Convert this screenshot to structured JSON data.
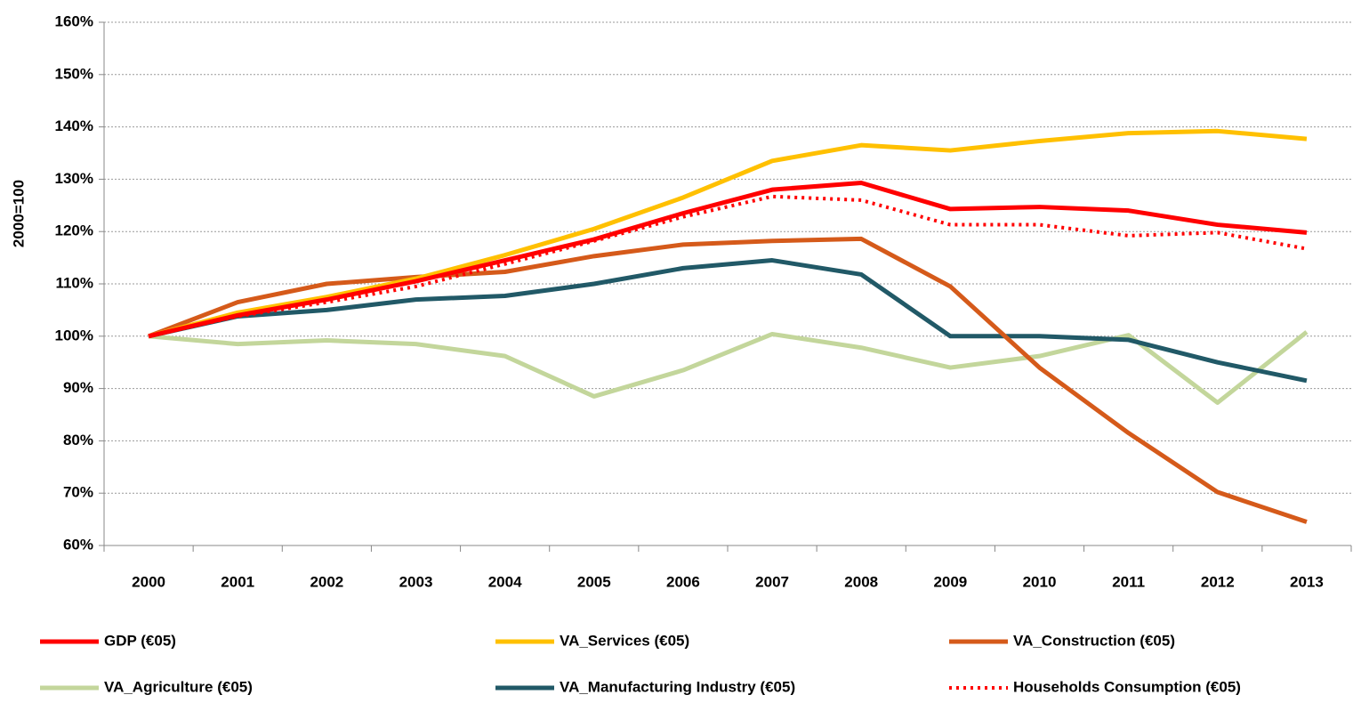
{
  "chart_data": {
    "type": "line",
    "y_label": "2000=100",
    "categories": [
      "2000",
      "2001",
      "2002",
      "2003",
      "2004",
      "2005",
      "2006",
      "2007",
      "2008",
      "2009",
      "2010",
      "2011",
      "2012",
      "2013"
    ],
    "ylim": [
      60,
      160
    ],
    "yticks": [
      {
        "value": 60,
        "label": "60%"
      },
      {
        "value": 70,
        "label": "70%"
      },
      {
        "value": 80,
        "label": "80%"
      },
      {
        "value": 90,
        "label": "90%"
      },
      {
        "value": 100,
        "label": "100%"
      },
      {
        "value": 110,
        "label": "110%"
      },
      {
        "value": 120,
        "label": "120%"
      },
      {
        "value": 130,
        "label": "130%"
      },
      {
        "value": 140,
        "label": "140%"
      },
      {
        "value": 150,
        "label": "150%"
      },
      {
        "value": 160,
        "label": "160%"
      }
    ],
    "grid": true,
    "legend": "bottom",
    "series": [
      {
        "name": "GDP (€05)",
        "color": "#ff0000",
        "style": "solid",
        "values": [
          100,
          104,
          107,
          110.5,
          114.5,
          118.5,
          123.5,
          128,
          129.3,
          124.3,
          124.7,
          124,
          121.3,
          119.8
        ]
      },
      {
        "name": "VA_Services (€05)",
        "color": "#ffc000",
        "style": "solid",
        "values": [
          100,
          104.5,
          107.5,
          111,
          115.5,
          120.5,
          126.5,
          133.5,
          136.5,
          135.5,
          137.3,
          138.8,
          139.2,
          137.7
        ]
      },
      {
        "name": "VA_Construction (€05)",
        "color": "#d55a1a",
        "style": "solid",
        "values": [
          100,
          106.5,
          110,
          111.3,
          112.3,
          115.3,
          117.5,
          118.2,
          118.6,
          109.5,
          94,
          81.5,
          70.2,
          64.5
        ]
      },
      {
        "name": "VA_Agriculture (€05)",
        "color": "#c3d69b",
        "style": "solid",
        "values": [
          100,
          98.5,
          99.2,
          98.5,
          96.2,
          88.5,
          93.5,
          100.4,
          97.8,
          94,
          96.2,
          100.2,
          87.3,
          100.8
        ]
      },
      {
        "name": "VA_Manufacturing Industry (€05)",
        "color": "#215967",
        "style": "solid",
        "values": [
          100,
          103.8,
          105,
          107,
          107.7,
          110,
          113,
          114.5,
          111.8,
          100,
          100,
          99.3,
          95,
          91.5
        ]
      },
      {
        "name": "Households Consumption (€05)",
        "color": "#ff0000",
        "style": "dotted",
        "values": [
          100,
          103.8,
          106.5,
          109.5,
          113.8,
          118.2,
          122.8,
          126.7,
          126,
          121.3,
          121.3,
          119.2,
          119.8,
          116.7
        ]
      }
    ]
  }
}
